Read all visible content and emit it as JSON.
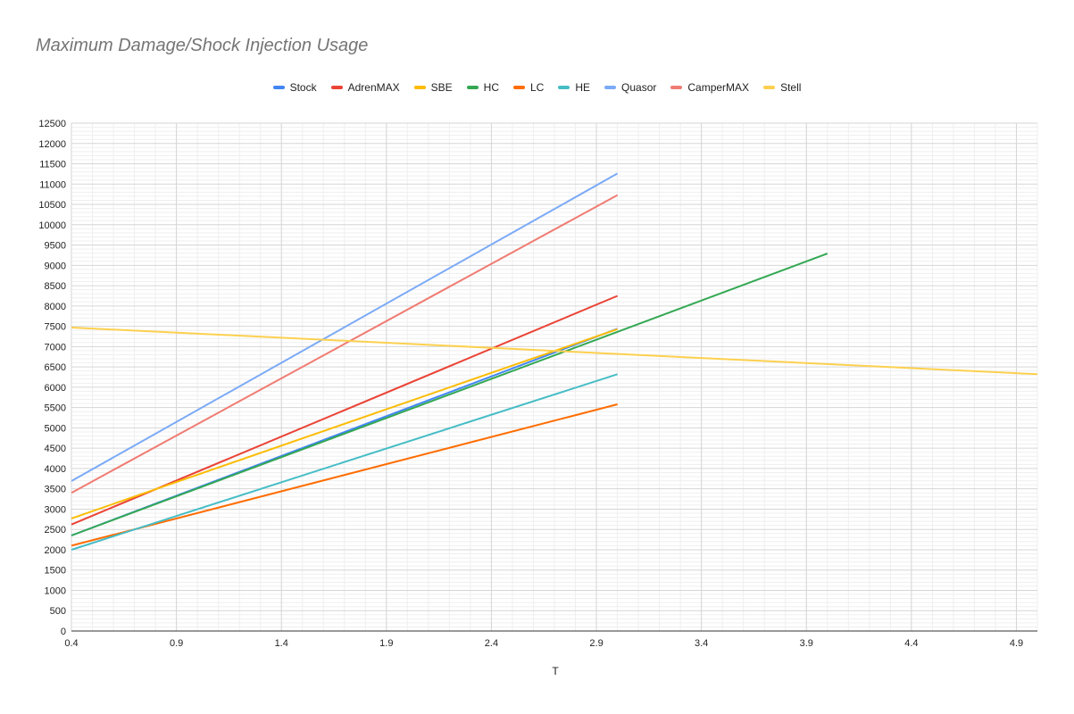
{
  "chart_data": {
    "type": "line",
    "title": "Maximum Damage/Shock Injection Usage",
    "xlabel": "T",
    "ylabel": "",
    "xlim": [
      0.4,
      5.0
    ],
    "ylim": [
      0,
      12500
    ],
    "x_ticks": [
      "0.4",
      "0.9",
      "1.4",
      "1.9",
      "2.4",
      "2.9",
      "3.4",
      "3.9",
      "4.4",
      "4.9"
    ],
    "y_ticks": [
      "0",
      "500",
      "1000",
      "1500",
      "2000",
      "2500",
      "3000",
      "3500",
      "4000",
      "4500",
      "5000",
      "5500",
      "6000",
      "6500",
      "7000",
      "7500",
      "8000",
      "8500",
      "9000",
      "9500",
      "10000",
      "10500",
      "11000",
      "11500",
      "12000",
      "12500"
    ],
    "grid": true,
    "legend_position": "top",
    "series": [
      {
        "name": "Stock",
        "color": "#4285f4",
        "x": [
          0.4,
          3.0
        ],
        "y": [
          2350,
          7440
        ]
      },
      {
        "name": "AdrenMAX",
        "color": "#ea4335",
        "x": [
          0.4,
          3.0
        ],
        "y": [
          2620,
          8250
        ]
      },
      {
        "name": "SBE",
        "color": "#fbbc04",
        "x": [
          0.4,
          3.0
        ],
        "y": [
          2770,
          7430
        ]
      },
      {
        "name": "HC",
        "color": "#34a853",
        "x": [
          0.4,
          4.0
        ],
        "y": [
          2350,
          9290
        ]
      },
      {
        "name": "LC",
        "color": "#ff6d01",
        "x": [
          0.4,
          3.0
        ],
        "y": [
          2100,
          5580
        ]
      },
      {
        "name": "HE",
        "color": "#46bdc6",
        "x": [
          0.4,
          3.0
        ],
        "y": [
          2000,
          6320
        ]
      },
      {
        "name": "Quasor",
        "color": "#7baaf7",
        "x": [
          0.4,
          3.0
        ],
        "y": [
          3690,
          11260
        ]
      },
      {
        "name": "CamperMAX",
        "color": "#f07b72",
        "x": [
          0.4,
          3.0
        ],
        "y": [
          3400,
          10730
        ]
      },
      {
        "name": "Stell",
        "color": "#fcd04f",
        "x": [
          0.4,
          5.0
        ],
        "y": [
          7470,
          6320
        ]
      }
    ]
  }
}
